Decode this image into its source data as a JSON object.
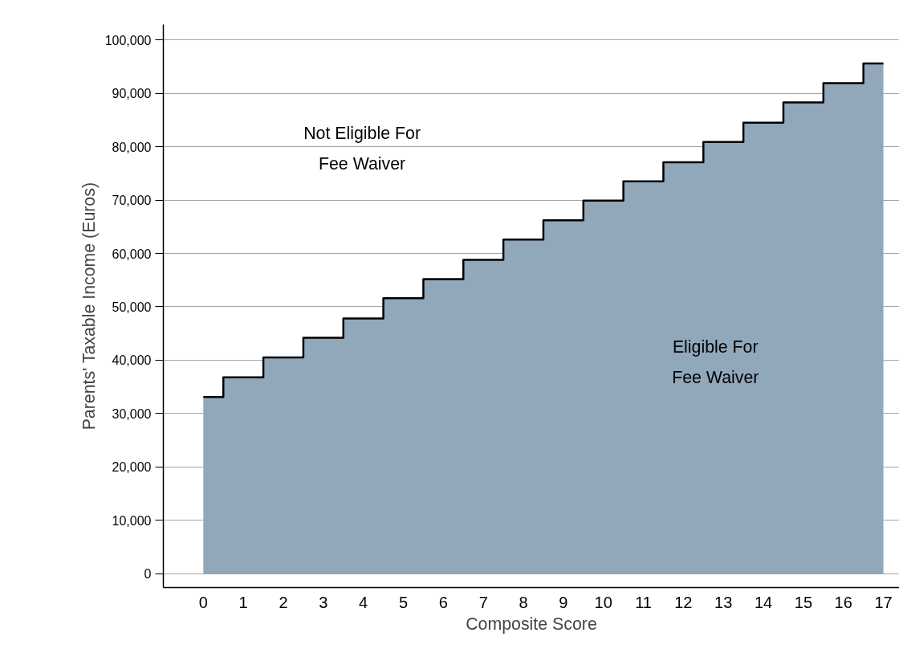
{
  "chart_data": {
    "type": "area",
    "xlabel": "Composite Score",
    "ylabel": "Parents' Taxable Income (Euros)",
    "x": [
      0,
      1,
      2,
      3,
      4,
      5,
      6,
      7,
      8,
      9,
      10,
      11,
      12,
      13,
      14,
      15,
      16,
      17
    ],
    "series": [
      {
        "color": "#91a7ba",
        "values": [
          33100,
          36800,
          40500,
          44200,
          47800,
          51600,
          55200,
          58800,
          62600,
          66200,
          69900,
          73500,
          77100,
          80900,
          84500,
          88300,
          91900,
          95600
        ]
      },
      {
        "type": "step",
        "color": "#000000",
        "values": [
          33100,
          36800,
          40500,
          44200,
          47800,
          51600,
          55200,
          58800,
          62600,
          66200,
          69900,
          73500,
          77100,
          80900,
          84500,
          88300,
          91900,
          95600
        ]
      }
    ],
    "xlim": [
      -1,
      17.4
    ],
    "xticks": [
      0,
      1,
      2,
      3,
      4,
      5,
      6,
      7,
      8,
      9,
      10,
      11,
      12,
      13,
      14,
      15,
      16,
      17
    ],
    "ylim": [
      -2600,
      102900
    ],
    "yticks": [
      {
        "value": 0,
        "label": "0"
      },
      {
        "value": 10000,
        "label": "10,000"
      },
      {
        "value": 20000,
        "label": "20,000"
      },
      {
        "value": 30000,
        "label": "30,000"
      },
      {
        "value": 40000,
        "label": "40,000"
      },
      {
        "value": 50000,
        "label": "50,000"
      },
      {
        "value": 60000,
        "label": "60,000"
      },
      {
        "value": 70000,
        "label": "70,000"
      },
      {
        "value": 80000,
        "label": "80,000"
      },
      {
        "value": 90000,
        "label": "90,000"
      },
      {
        "value": 100000,
        "label": "100,000"
      }
    ],
    "grid": "y",
    "annotations": [
      "Not Eligible For\nFee Waiver",
      "Eligible For\nFee Waiver"
    ]
  }
}
